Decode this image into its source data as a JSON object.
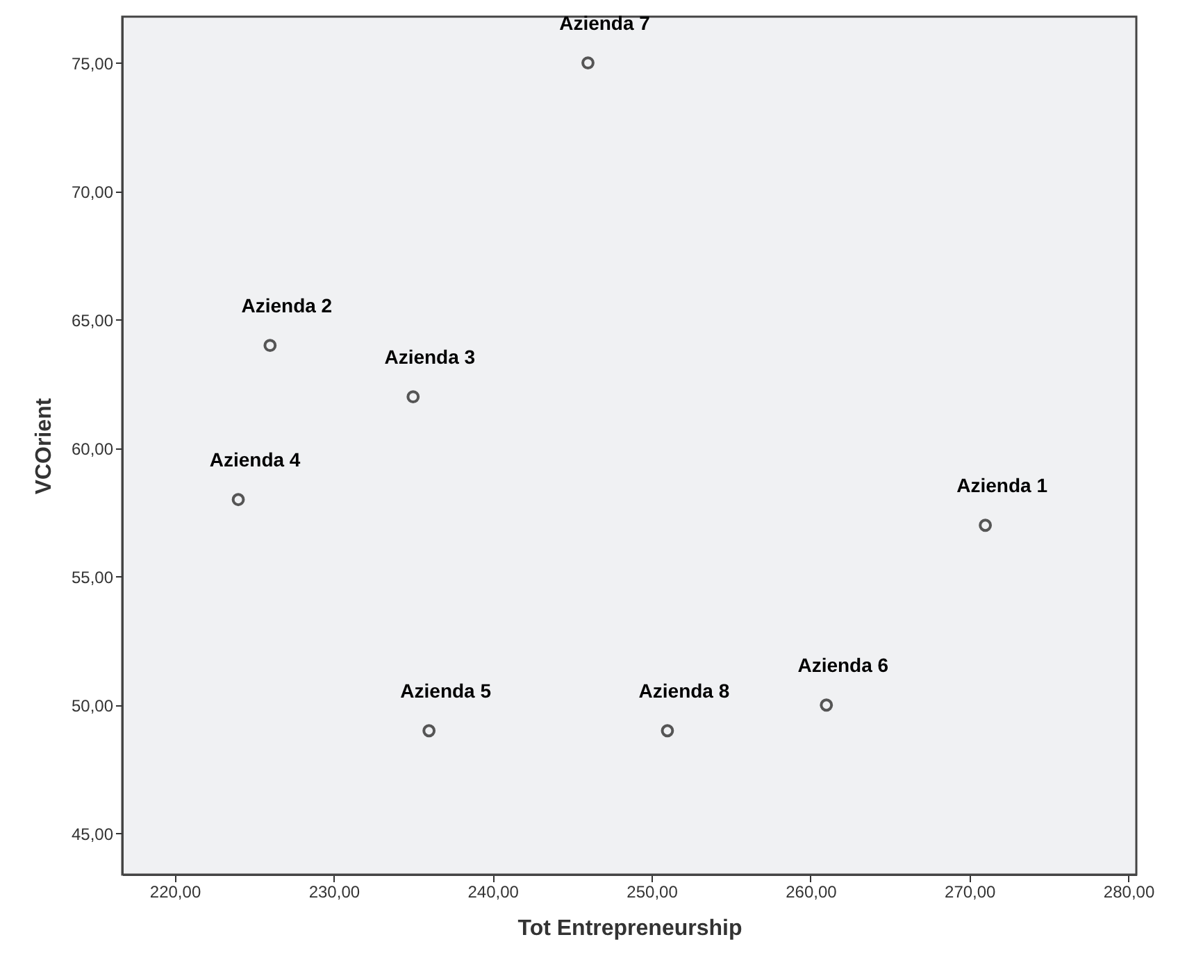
{
  "chart_data": {
    "type": "scatter",
    "xlabel": "Tot Entrepreneurship",
    "ylabel": "VCOrient",
    "x": [
      271,
      226,
      235,
      224,
      236,
      261,
      246,
      251
    ],
    "series": [
      {
        "color": "#555555",
        "values": [
          57,
          64,
          62,
          58,
          49,
          50,
          75,
          49
        ]
      }
    ],
    "marker": "circle",
    "xlim": [
      216.7,
      280.5
    ],
    "ylim": [
      43.4,
      76.8
    ],
    "xticks": [
      {
        "value": 220,
        "label": "220,00"
      },
      {
        "value": 230,
        "label": "230,00"
      },
      {
        "value": 240,
        "label": "240,00"
      },
      {
        "value": 250,
        "label": "250,00"
      },
      {
        "value": 260,
        "label": "260,00"
      },
      {
        "value": 270,
        "label": "270,00"
      },
      {
        "value": 280,
        "label": "280,00"
      }
    ],
    "yticks": [
      {
        "value": 45,
        "label": "45,00"
      },
      {
        "value": 50,
        "label": "50,00"
      },
      {
        "value": 55,
        "label": "55,00"
      },
      {
        "value": 60,
        "label": "60,00"
      },
      {
        "value": 65,
        "label": "65,00"
      },
      {
        "value": 70,
        "label": "70,00"
      },
      {
        "value": 75,
        "label": "75,00"
      }
    ],
    "annotations": [
      {
        "text": "Azienda 1",
        "x": 271,
        "y": 57
      },
      {
        "text": "Azienda 2",
        "x": 226,
        "y": 64
      },
      {
        "text": "Azienda 3",
        "x": 235,
        "y": 62
      },
      {
        "text": "Azienda 4",
        "x": 224,
        "y": 58
      },
      {
        "text": "Azienda 5",
        "x": 236,
        "y": 49
      },
      {
        "text": "Azienda 6",
        "x": 261,
        "y": 50
      },
      {
        "text": "Azienda 7",
        "x": 246,
        "y": 75
      },
      {
        "text": "Azienda 8",
        "x": 251,
        "y": 49
      }
    ],
    "grid": false
  }
}
